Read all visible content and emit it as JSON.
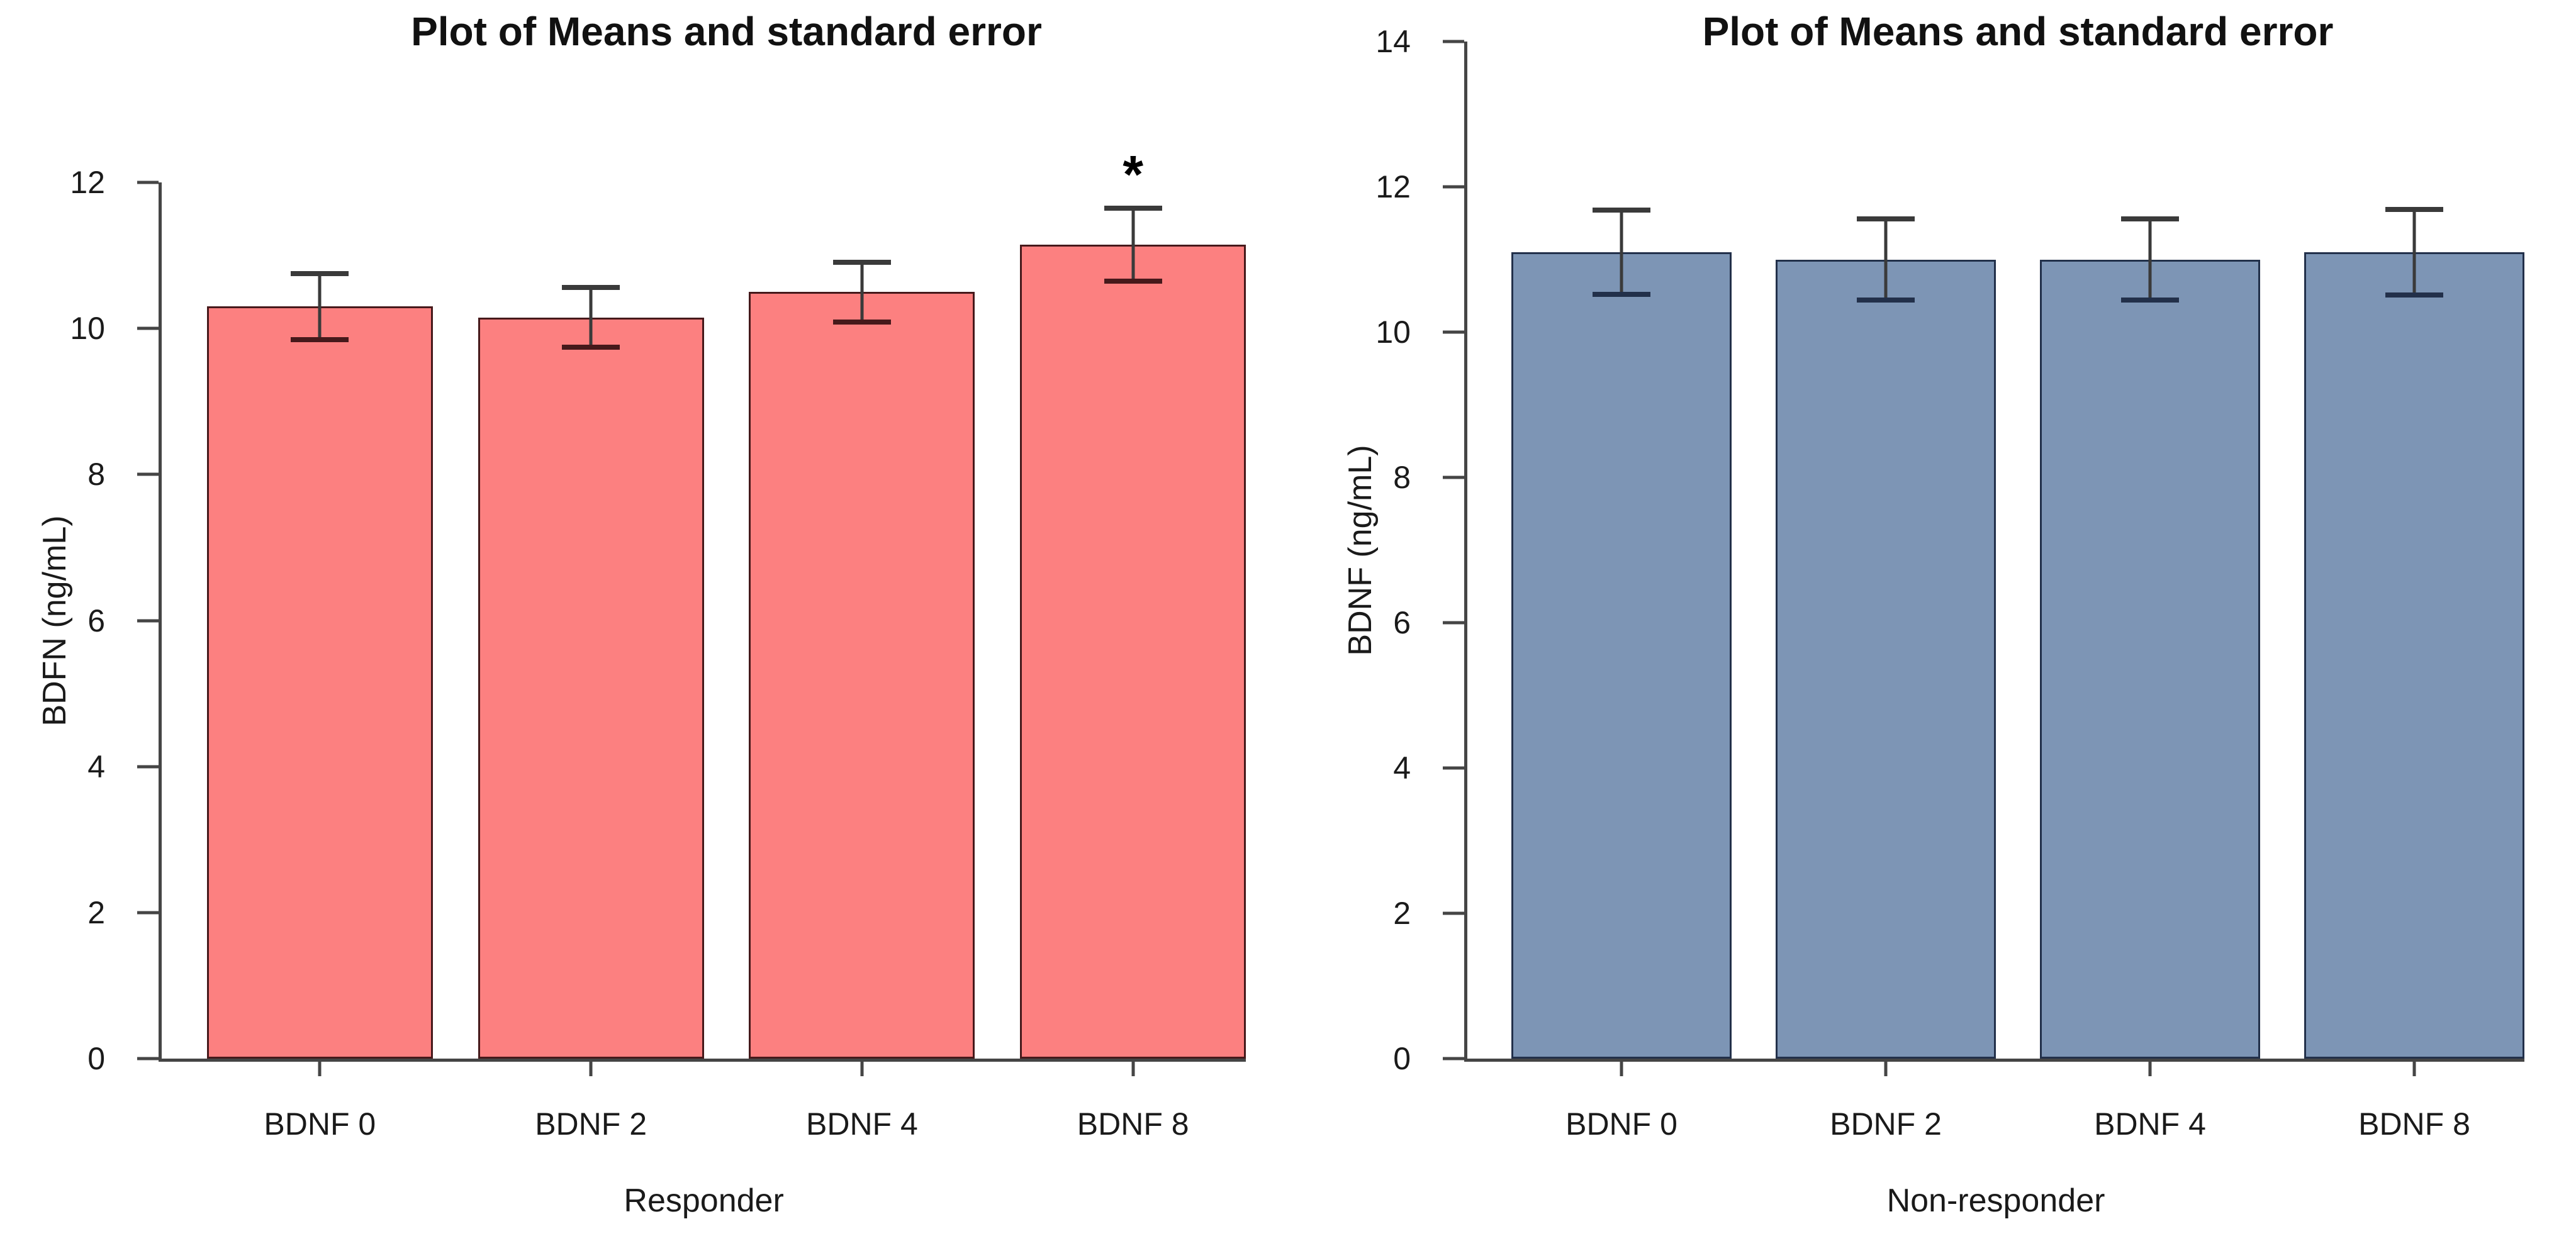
{
  "figure": {
    "background": "#ffffff",
    "panels": 2,
    "error_bar_style": "mean ± standard error, capped whiskers"
  },
  "colors": {
    "axis": "#454545",
    "text": "#1a1a1a",
    "error_bar": "#3a3a3a",
    "left_bar_fill": "#FC8080",
    "left_bar_border": "#46191B",
    "right_bar_fill": "#7D95B5",
    "right_bar_border": "#22304A"
  },
  "chart_data": [
    {
      "type": "bar",
      "title": "Plot of Means and standard error",
      "ylabel": "BDFN (ng/mL)",
      "xlabel": "Responder",
      "categories": [
        "BDNF 0",
        "BDNF 2",
        "BDNF 4",
        "BDNF 8"
      ],
      "means": [
        10.3,
        10.15,
        10.5,
        11.15
      ],
      "se": [
        0.45,
        0.41,
        0.41,
        0.5
      ],
      "ylim": [
        0,
        12
      ],
      "yticks": [
        0,
        2,
        4,
        6,
        8,
        10,
        12
      ],
      "grid": "off",
      "legend": "none",
      "bar_fill": "#FC8080",
      "bar_border": "#46191B",
      "annotations": [
        {
          "text": "*",
          "bar_index": 3,
          "meaning": "significance marker above BDNF 8 bar"
        }
      ]
    },
    {
      "type": "bar",
      "title": "Plot of Means and standard error",
      "ylabel": "BDNF (ng/mL)",
      "xlabel": "Non-responder",
      "categories": [
        "BDNF 0",
        "BDNF 2",
        "BDNF 4",
        "BDNF 8"
      ],
      "means": [
        11.1,
        11.0,
        11.0,
        11.1
      ],
      "se": [
        0.58,
        0.56,
        0.56,
        0.59
      ],
      "ylim": [
        0,
        14
      ],
      "yticks": [
        0,
        2,
        4,
        6,
        8,
        10,
        12,
        14
      ],
      "grid": "off",
      "legend": "none",
      "bar_fill": "#7D95B5",
      "bar_border": "#22304A",
      "annotations": []
    }
  ]
}
